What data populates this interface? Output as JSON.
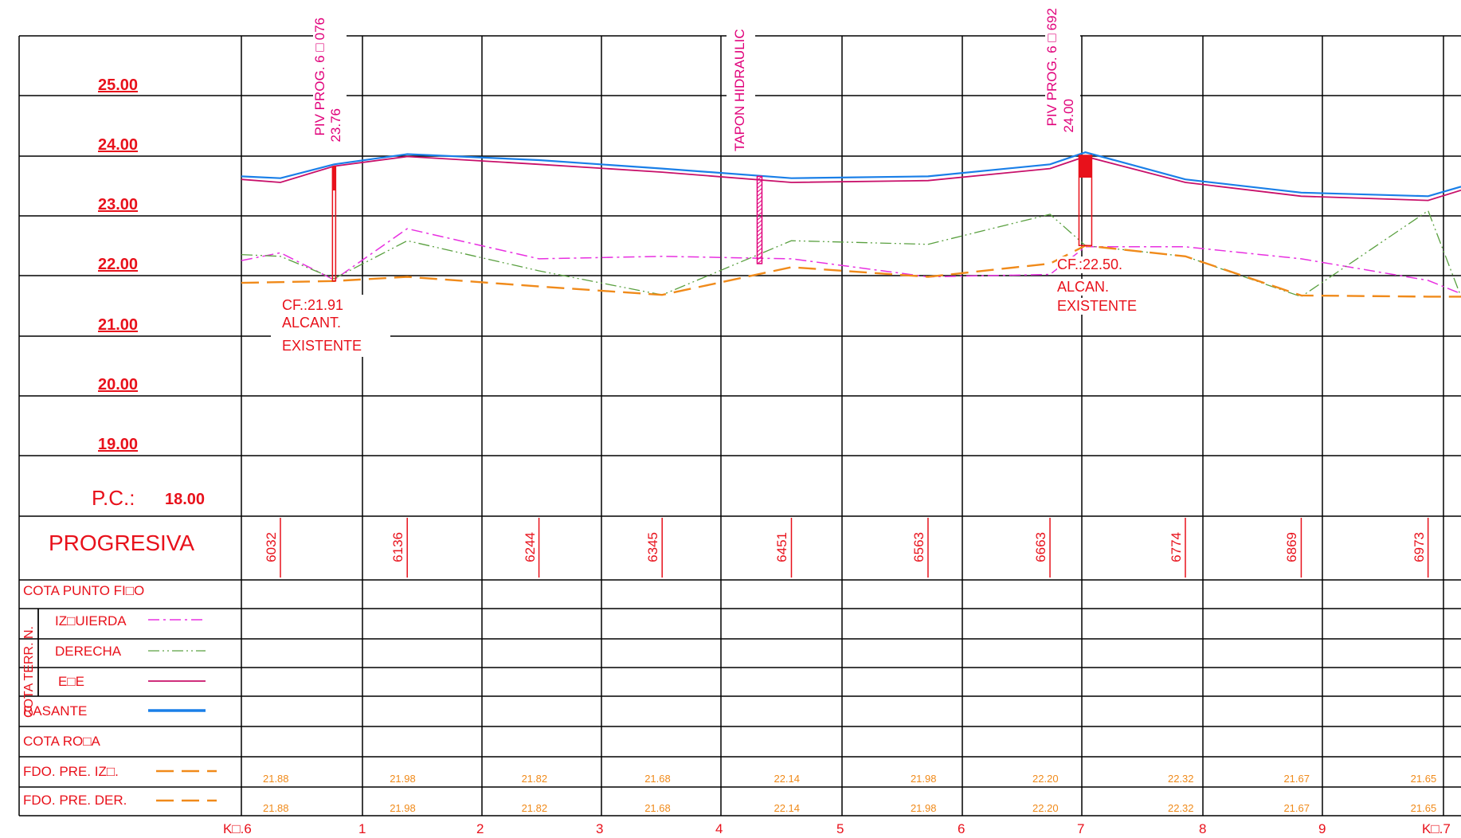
{
  "elevation_axis": {
    "labels": [
      "25.00",
      "24.00",
      "23.00",
      "22.00",
      "21.00",
      "20.00",
      "19.00"
    ],
    "reference_prefix": "P.C.:",
    "reference_value": "18.00"
  },
  "annotations": {
    "piv1_line1": "PIV PROG. 6□076",
    "piv1_line2": "23.76",
    "piv2_line1": "PIV PROG. 6□692",
    "piv2_line2": "24.00",
    "tapon": "TAPON HIDRAULIC",
    "cf1_line1": "CF.:21.91",
    "cf1_line2": "ALCANT.",
    "cf1_line3": "EXISTENTE",
    "cf2_line1": "CF.:22.50.",
    "cf2_line2": "ALCAN.",
    "cf2_line3": "EXISTENTE"
  },
  "table": {
    "progresiva_label": "PROGRESIVA",
    "progresivas": [
      "6032",
      "6136",
      "6244",
      "6345",
      "6451",
      "6563",
      "6663",
      "6774",
      "6869",
      "6973"
    ],
    "rows": {
      "cota_punto_fijo": "COTA PUNTO FI□O",
      "cota_terr": "COTA TERR. N.",
      "izquierda": "IZ□UIERDA",
      "derecha": "DERECHA",
      "eje": "E□E",
      "rasante": "RASANTE",
      "cota_roja": "COTA RO□A",
      "fdo_izq": "FDO. PRE. IZ□.",
      "fdo_der": "FDO. PRE. DER."
    },
    "fdo_izq_values": [
      "21.88",
      "21.98",
      "21.82",
      "21.68",
      "22.14",
      "21.98",
      "22.20",
      "22.32",
      "21.67",
      "21.65"
    ],
    "fdo_der_values": [
      "21.88",
      "21.98",
      "21.82",
      "21.68",
      "22.14",
      "21.98",
      "22.20",
      "22.32",
      "21.67",
      "21.65"
    ]
  },
  "bottom_axis": [
    "K□.6",
    "1",
    "2",
    "3",
    "4",
    "5",
    "6",
    "7",
    "8",
    "9",
    "K□.7"
  ],
  "colors": {
    "grid": "#000000",
    "label_red": "#e8111b",
    "rasante": "#1a7fe8",
    "eje": "#c8106a",
    "izquierda": "#e830e0",
    "derecha": "#5aa040",
    "fondo": "#f08a1a",
    "tapon": "#e0007a"
  },
  "chart_data": {
    "type": "line",
    "ylim": [
      18,
      26
    ],
    "ytick_labels": [
      "25.00",
      "24.00",
      "23.00",
      "22.00",
      "21.00",
      "20.00",
      "19.00"
    ],
    "series": [
      {
        "name": "RASANTE",
        "style": "solid-thick",
        "color": "#1a7fe8",
        "points": [
          [
            6000,
            23.65
          ],
          [
            6032,
            23.62
          ],
          [
            6076,
            23.85
          ],
          [
            6136,
            24.02
          ],
          [
            6244,
            23.92
          ],
          [
            6345,
            23.78
          ],
          [
            6451,
            23.62
          ],
          [
            6563,
            23.65
          ],
          [
            6663,
            23.85
          ],
          [
            6692,
            24.05
          ],
          [
            6774,
            23.6
          ],
          [
            6869,
            23.38
          ],
          [
            6973,
            23.32
          ],
          [
            7000,
            23.48
          ]
        ]
      },
      {
        "name": "E□E",
        "style": "solid",
        "color": "#c8106a",
        "points": [
          [
            6000,
            23.6
          ],
          [
            6032,
            23.55
          ],
          [
            6076,
            23.82
          ],
          [
            6136,
            23.98
          ],
          [
            6244,
            23.85
          ],
          [
            6345,
            23.72
          ],
          [
            6451,
            23.55
          ],
          [
            6563,
            23.58
          ],
          [
            6663,
            23.78
          ],
          [
            6692,
            23.98
          ],
          [
            6774,
            23.55
          ],
          [
            6869,
            23.32
          ],
          [
            6973,
            23.25
          ],
          [
            7000,
            23.42
          ]
        ]
      },
      {
        "name": "IZ□UIERDA",
        "style": "dashdot",
        "color": "#e830e0",
        "points": [
          [
            6000,
            22.25
          ],
          [
            6032,
            22.38
          ],
          [
            6076,
            21.93
          ],
          [
            6136,
            22.78
          ],
          [
            6244,
            22.28
          ],
          [
            6345,
            22.32
          ],
          [
            6451,
            22.28
          ],
          [
            6563,
            21.98
          ],
          [
            6663,
            22.02
          ],
          [
            6692,
            22.48
          ],
          [
            6774,
            22.48
          ],
          [
            6869,
            22.28
          ],
          [
            6973,
            21.92
          ],
          [
            7000,
            21.7
          ]
        ]
      },
      {
        "name": "DERECHA",
        "style": "dashdotdot",
        "color": "#5aa040",
        "points": [
          [
            6000,
            22.35
          ],
          [
            6032,
            22.32
          ],
          [
            6076,
            21.95
          ],
          [
            6136,
            22.58
          ],
          [
            6244,
            22.08
          ],
          [
            6345,
            21.68
          ],
          [
            6451,
            22.58
          ],
          [
            6563,
            22.52
          ],
          [
            6663,
            23.02
          ],
          [
            6692,
            22.5
          ],
          [
            6774,
            22.32
          ],
          [
            6869,
            21.65
          ],
          [
            6973,
            23.08
          ],
          [
            7000,
            21.65
          ]
        ]
      },
      {
        "name": "FDO. PRE.",
        "style": "dashed",
        "color": "#f08a1a",
        "points": [
          [
            6000,
            21.88
          ],
          [
            6076,
            21.91
          ],
          [
            6136,
            21.98
          ],
          [
            6244,
            21.82
          ],
          [
            6345,
            21.68
          ],
          [
            6451,
            22.14
          ],
          [
            6563,
            21.98
          ],
          [
            6663,
            22.2
          ],
          [
            6692,
            22.5
          ],
          [
            6774,
            22.32
          ],
          [
            6869,
            21.67
          ],
          [
            6973,
            21.65
          ],
          [
            7000,
            21.65
          ]
        ]
      }
    ]
  }
}
